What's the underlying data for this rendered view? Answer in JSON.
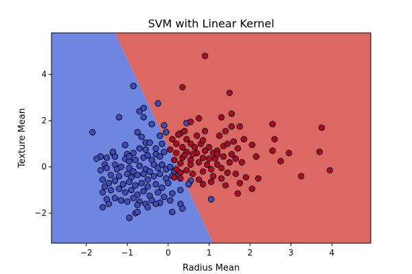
{
  "chart_data": {
    "type": "scatter",
    "title": "SVM with Linear Kernel",
    "xlabel": "Radius Mean",
    "ylabel": "Texture Mean",
    "xlim": [
      -2.85,
      4.95
    ],
    "ylim": [
      -3.3,
      5.8
    ],
    "xticks": [
      -2,
      -1,
      0,
      1,
      2,
      3,
      4
    ],
    "yticks": [
      -2,
      0,
      2,
      4
    ],
    "xtick_labels": [
      "−2",
      "−1",
      "0",
      "1",
      "2",
      "3",
      "4"
    ],
    "ytick_labels": [
      "−2",
      "0",
      "2",
      "4"
    ],
    "grid": false,
    "decision_boundary": {
      "x_at_top": -1.3,
      "x_at_bottom": 1.1
    },
    "region_colors": {
      "benign": "#6e86e0",
      "malignant": "#dc6863"
    },
    "marker_colors": {
      "benign": "#3b4cc0",
      "malignant": "#b40426"
    },
    "series": [
      {
        "class": "benign",
        "points": [
          [
            -1.85,
            1.5
          ],
          [
            -1.2,
            2.15
          ],
          [
            -0.85,
            3.5
          ],
          [
            -0.7,
            2.4
          ],
          [
            -0.6,
            2.55
          ],
          [
            -0.25,
            2.75
          ],
          [
            -0.6,
            2.15
          ],
          [
            -0.4,
            1.85
          ],
          [
            -0.1,
            1.8
          ],
          [
            -0.2,
            1.35
          ],
          [
            -0.05,
            1.5
          ],
          [
            0.45,
            1.9
          ],
          [
            -0.75,
            1.5
          ],
          [
            -0.65,
            1.3
          ],
          [
            -1.05,
            0.95
          ],
          [
            -0.55,
            1.05
          ],
          [
            -0.45,
            1.05
          ],
          [
            -0.3,
            0.8
          ],
          [
            -0.15,
            1.0
          ],
          [
            -0.7,
            0.8
          ],
          [
            -0.85,
            0.6
          ],
          [
            -1.0,
            0.55
          ],
          [
            -1.35,
            0.6
          ],
          [
            -1.3,
            0.45
          ],
          [
            -1.5,
            0.4
          ],
          [
            -1.65,
            0.45
          ],
          [
            -1.75,
            0.35
          ],
          [
            -1.35,
            0.65
          ],
          [
            -1.05,
            0.35
          ],
          [
            -0.95,
            0.25
          ],
          [
            -0.8,
            0.3
          ],
          [
            -0.6,
            0.4
          ],
          [
            -0.5,
            0.5
          ],
          [
            -0.4,
            0.3
          ],
          [
            -0.3,
            0.55
          ],
          [
            -0.2,
            0.45
          ],
          [
            -0.1,
            0.65
          ],
          [
            -0.35,
            0.1
          ],
          [
            -1.3,
            0.1
          ],
          [
            -1.55,
            0.1
          ],
          [
            -1.65,
            -0.15
          ],
          [
            -1.5,
            -0.05
          ],
          [
            -1.25,
            -0.1
          ],
          [
            -1.15,
            0.0
          ],
          [
            -0.95,
            -0.05
          ],
          [
            -0.85,
            -0.2
          ],
          [
            -0.7,
            0.05
          ],
          [
            -0.55,
            -0.1
          ],
          [
            -0.45,
            -0.2
          ],
          [
            -0.25,
            -0.05
          ],
          [
            -0.15,
            0.1
          ],
          [
            -0.05,
            -0.1
          ],
          [
            0.05,
            0.0
          ],
          [
            0.15,
            -0.2
          ],
          [
            0.25,
            -0.35
          ],
          [
            -1.4,
            -0.35
          ],
          [
            -1.2,
            -0.4
          ],
          [
            -1.0,
            -0.3
          ],
          [
            -0.9,
            -0.45
          ],
          [
            -0.75,
            -0.35
          ],
          [
            -0.6,
            -0.3
          ],
          [
            -0.5,
            -0.55
          ],
          [
            -0.35,
            -0.4
          ],
          [
            -0.2,
            -0.3
          ],
          [
            -0.05,
            -0.5
          ],
          [
            0.1,
            -0.4
          ],
          [
            -1.6,
            -0.55
          ],
          [
            -1.45,
            -0.7
          ],
          [
            -1.3,
            -0.6
          ],
          [
            -1.1,
            -0.75
          ],
          [
            -0.95,
            -0.65
          ],
          [
            -0.8,
            -0.8
          ],
          [
            -0.65,
            -0.7
          ],
          [
            -0.5,
            -0.85
          ],
          [
            -0.3,
            -0.75
          ],
          [
            -0.15,
            -0.9
          ],
          [
            0.0,
            -0.7
          ],
          [
            -1.55,
            -0.85
          ],
          [
            -1.4,
            -1.0
          ],
          [
            -1.2,
            -0.95
          ],
          [
            -1.05,
            -1.1
          ],
          [
            -0.9,
            -1.0
          ],
          [
            -0.75,
            -1.2
          ],
          [
            -0.6,
            -1.05
          ],
          [
            -0.45,
            -1.25
          ],
          [
            -0.25,
            -1.1
          ],
          [
            -0.1,
            -1.3
          ],
          [
            0.1,
            -1.15
          ],
          [
            0.3,
            -1.0
          ],
          [
            -1.6,
            -1.1
          ],
          [
            -1.5,
            -1.4
          ],
          [
            -1.3,
            -1.35
          ],
          [
            -1.15,
            -1.45
          ],
          [
            -1.0,
            -1.5
          ],
          [
            -0.85,
            -1.35
          ],
          [
            -0.7,
            -1.5
          ],
          [
            -0.55,
            -1.6
          ],
          [
            -0.4,
            -1.45
          ],
          [
            -0.2,
            -1.55
          ],
          [
            0.05,
            -1.45
          ],
          [
            -1.6,
            -1.75
          ],
          [
            -1.45,
            -1.6
          ],
          [
            -0.75,
            -1.65
          ],
          [
            -0.5,
            -1.75
          ],
          [
            -0.3,
            -1.6
          ],
          [
            0.3,
            -1.6
          ],
          [
            0.35,
            -1.8
          ],
          [
            -0.8,
            -2.0
          ],
          [
            -0.75,
            -1.95
          ],
          [
            0.1,
            -1.95
          ],
          [
            -0.95,
            -2.2
          ],
          [
            1.05,
            -1.4
          ],
          [
            0.55,
            -0.6
          ],
          [
            0.5,
            -0.75
          ],
          [
            -0.95,
            0.45
          ],
          [
            -0.55,
            0.75
          ]
        ]
      },
      {
        "class": "malignant",
        "points": [
          [
            0.9,
            4.8
          ],
          [
            0.35,
            3.45
          ],
          [
            1.5,
            3.2
          ],
          [
            0.75,
            2.1
          ],
          [
            0.55,
            1.95
          ],
          [
            0.9,
            1.55
          ],
          [
            0.3,
            1.45
          ],
          [
            0.25,
            1.4
          ],
          [
            0.1,
            1.2
          ],
          [
            0.2,
            1.0
          ],
          [
            0.45,
            1.2
          ],
          [
            0.55,
            1.0
          ],
          [
            0.8,
            1.0
          ],
          [
            0.85,
            1.15
          ],
          [
            0.65,
            0.85
          ],
          [
            0.35,
            0.85
          ],
          [
            0.05,
            0.75
          ],
          [
            0.2,
            0.6
          ],
          [
            0.45,
            0.65
          ],
          [
            0.7,
            0.6
          ],
          [
            0.9,
            0.7
          ],
          [
            1.1,
            0.6
          ],
          [
            1.2,
            0.7
          ],
          [
            1.35,
            0.9
          ],
          [
            1.45,
            1.0
          ],
          [
            1.6,
            1.1
          ],
          [
            1.25,
            1.35
          ],
          [
            1.4,
            1.55
          ],
          [
            1.55,
            1.75
          ],
          [
            1.3,
            2.15
          ],
          [
            1.55,
            2.3
          ],
          [
            1.75,
            1.75
          ],
          [
            1.85,
            1.2
          ],
          [
            2.05,
            0.95
          ],
          [
            1.7,
            0.8
          ],
          [
            1.55,
            0.55
          ],
          [
            1.35,
            0.45
          ],
          [
            1.15,
            0.35
          ],
          [
            1.0,
            0.35
          ],
          [
            0.85,
            0.4
          ],
          [
            0.55,
            0.3
          ],
          [
            0.35,
            0.4
          ],
          [
            0.15,
            0.3
          ],
          [
            0.3,
            0.15
          ],
          [
            0.55,
            0.1
          ],
          [
            0.75,
            0.2
          ],
          [
            0.95,
            0.1
          ],
          [
            1.2,
            0.1
          ],
          [
            1.5,
            0.2
          ],
          [
            1.65,
            0.35
          ],
          [
            1.8,
            0.2
          ],
          [
            2.15,
            0.45
          ],
          [
            1.05,
            -0.1
          ],
          [
            1.3,
            -0.05
          ],
          [
            1.45,
            -0.25
          ],
          [
            1.65,
            -0.3
          ],
          [
            1.9,
            -0.45
          ],
          [
            0.85,
            -0.2
          ],
          [
            0.6,
            -0.3
          ],
          [
            0.45,
            -0.15
          ],
          [
            0.3,
            -0.5
          ],
          [
            0.75,
            -0.55
          ],
          [
            1.1,
            -0.4
          ],
          [
            1.3,
            -0.5
          ],
          [
            0.85,
            -0.75
          ],
          [
            1.05,
            -0.65
          ],
          [
            1.4,
            -0.8
          ],
          [
            1.75,
            -0.7
          ],
          [
            2.05,
            -0.95
          ],
          [
            2.2,
            -0.5
          ],
          [
            1.7,
            -1.15
          ],
          [
            2.55,
            1.85
          ],
          [
            2.6,
            1.2
          ],
          [
            2.55,
            0.7
          ],
          [
            2.75,
            0.25
          ],
          [
            2.95,
            0.6
          ],
          [
            3.25,
            -0.4
          ],
          [
            3.7,
            0.65
          ],
          [
            3.75,
            1.7
          ],
          [
            3.95,
            -0.15
          ],
          [
            0.2,
            -0.1
          ],
          [
            0.3,
            -0.25
          ],
          [
            0.15,
            -0.45
          ],
          [
            0.4,
            0.5
          ],
          [
            0.6,
            0.55
          ],
          [
            1.0,
            0.85
          ],
          [
            1.2,
            0.55
          ],
          [
            0.7,
            1.35
          ],
          [
            0.4,
            1.55
          ]
        ]
      }
    ]
  }
}
